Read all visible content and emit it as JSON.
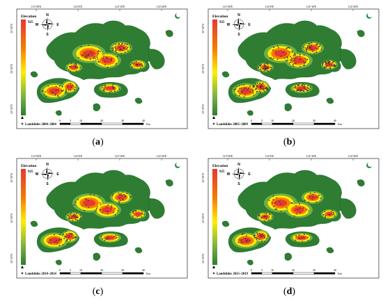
{
  "panels": [
    {
      "id": "a",
      "caption_prefix": "(",
      "caption_letter": "a",
      "caption_suffix": ")",
      "legend_label": "Landslides 2000–2004"
    },
    {
      "id": "b",
      "caption_prefix": "(",
      "caption_letter": "b",
      "caption_suffix": ")",
      "legend_label": "Landslides 2005–2009"
    },
    {
      "id": "c",
      "caption_prefix": "(",
      "caption_letter": "c",
      "caption_suffix": ")",
      "legend_label": "Landslides 2010–2014"
    },
    {
      "id": "d",
      "caption_prefix": "(",
      "caption_letter": "d",
      "caption_suffix": ")",
      "legend_label": "Landslides 2015–2019"
    }
  ],
  "map": {
    "top_ticks": [
      "113°50'E",
      "114°0'E",
      "114°10'E",
      "114°20'E"
    ],
    "left_ticks": [
      "22°30'N",
      "22°20'N",
      "22°10'N"
    ],
    "elevation_title": "Elevation",
    "elevation_max": "925",
    "elevation_min": "0",
    "compass": {
      "n": "N",
      "s": "S",
      "e": "E",
      "w": "W"
    },
    "scale_labels": [
      "0",
      "5",
      "10",
      "20",
      "30",
      "40"
    ],
    "scale_unit": "Km"
  },
  "colors": {
    "low": "#2e7d32",
    "mid_low": "#7cb342",
    "mid": "#ffee00",
    "high": "#f57c00",
    "peak": "#e53935",
    "landslide": "#3a3a3a"
  }
}
